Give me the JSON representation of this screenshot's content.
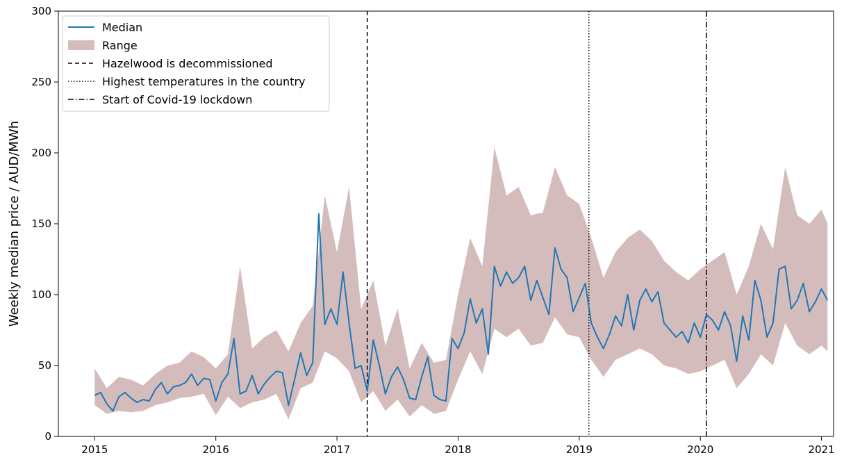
{
  "chart_data": {
    "type": "line",
    "title": "",
    "xlabel": "",
    "ylabel": "Weekly median price / AUD/MWh",
    "xlim": [
      2014.7,
      2021.1
    ],
    "ylim": [
      0,
      300
    ],
    "grid": false,
    "legend_placement": "top-left",
    "x_ticks": [
      2015,
      2016,
      2017,
      2018,
      2019,
      2020,
      2021
    ],
    "x_tick_labels": [
      "2015",
      "2016",
      "2017",
      "2018",
      "2019",
      "2020",
      "2021"
    ],
    "y_ticks": [
      0,
      50,
      100,
      150,
      200,
      250,
      300
    ],
    "y_tick_labels": [
      "0",
      "50",
      "100",
      "150",
      "200",
      "250",
      "300"
    ],
    "colors": {
      "median": "#1f77b4",
      "range": "#d5bcbc",
      "event_line": "#000000"
    },
    "series": [
      {
        "name": "Median",
        "kind": "line",
        "points": [
          [
            2015.0,
            29
          ],
          [
            2015.05,
            31
          ],
          [
            2015.1,
            23
          ],
          [
            2015.15,
            18
          ],
          [
            2015.2,
            28
          ],
          [
            2015.25,
            31
          ],
          [
            2015.3,
            27
          ],
          [
            2015.35,
            24
          ],
          [
            2015.4,
            26
          ],
          [
            2015.45,
            25
          ],
          [
            2015.5,
            33
          ],
          [
            2015.55,
            38
          ],
          [
            2015.6,
            30
          ],
          [
            2015.65,
            35
          ],
          [
            2015.7,
            36
          ],
          [
            2015.75,
            38
          ],
          [
            2015.8,
            44
          ],
          [
            2015.85,
            36
          ],
          [
            2015.9,
            41
          ],
          [
            2015.95,
            40
          ],
          [
            2016.0,
            25
          ],
          [
            2016.05,
            38
          ],
          [
            2016.1,
            44
          ],
          [
            2016.15,
            69
          ],
          [
            2016.2,
            30
          ],
          [
            2016.25,
            32
          ],
          [
            2016.3,
            43
          ],
          [
            2016.35,
            30
          ],
          [
            2016.4,
            37
          ],
          [
            2016.45,
            42
          ],
          [
            2016.5,
            46
          ],
          [
            2016.55,
            45
          ],
          [
            2016.6,
            22
          ],
          [
            2016.65,
            40
          ],
          [
            2016.7,
            59
          ],
          [
            2016.75,
            43
          ],
          [
            2016.8,
            52
          ],
          [
            2016.85,
            157
          ],
          [
            2016.9,
            79
          ],
          [
            2016.95,
            90
          ],
          [
            2017.0,
            79
          ],
          [
            2017.05,
            116
          ],
          [
            2017.1,
            80
          ],
          [
            2017.15,
            48
          ],
          [
            2017.2,
            50
          ],
          [
            2017.25,
            32
          ],
          [
            2017.3,
            68
          ],
          [
            2017.35,
            50
          ],
          [
            2017.4,
            30
          ],
          [
            2017.45,
            42
          ],
          [
            2017.5,
            49
          ],
          [
            2017.55,
            40
          ],
          [
            2017.6,
            27
          ],
          [
            2017.65,
            26
          ],
          [
            2017.7,
            42
          ],
          [
            2017.75,
            56
          ],
          [
            2017.8,
            29
          ],
          [
            2017.85,
            26
          ],
          [
            2017.9,
            25
          ],
          [
            2017.95,
            69
          ],
          [
            2018.0,
            62
          ],
          [
            2018.05,
            73
          ],
          [
            2018.1,
            97
          ],
          [
            2018.15,
            80
          ],
          [
            2018.2,
            90
          ],
          [
            2018.25,
            58
          ],
          [
            2018.3,
            120
          ],
          [
            2018.35,
            106
          ],
          [
            2018.4,
            116
          ],
          [
            2018.45,
            108
          ],
          [
            2018.5,
            112
          ],
          [
            2018.55,
            120
          ],
          [
            2018.6,
            96
          ],
          [
            2018.65,
            110
          ],
          [
            2018.7,
            98
          ],
          [
            2018.75,
            86
          ],
          [
            2018.8,
            133
          ],
          [
            2018.85,
            118
          ],
          [
            2018.9,
            112
          ],
          [
            2018.95,
            88
          ],
          [
            2019.0,
            98
          ],
          [
            2019.05,
            108
          ],
          [
            2019.1,
            80
          ],
          [
            2019.15,
            70
          ],
          [
            2019.2,
            62
          ],
          [
            2019.25,
            72
          ],
          [
            2019.3,
            85
          ],
          [
            2019.35,
            78
          ],
          [
            2019.4,
            100
          ],
          [
            2019.45,
            75
          ],
          [
            2019.5,
            96
          ],
          [
            2019.55,
            104
          ],
          [
            2019.6,
            95
          ],
          [
            2019.65,
            102
          ],
          [
            2019.7,
            80
          ],
          [
            2019.75,
            75
          ],
          [
            2019.8,
            70
          ],
          [
            2019.85,
            74
          ],
          [
            2019.9,
            66
          ],
          [
            2019.95,
            80
          ],
          [
            2020.0,
            70
          ],
          [
            2020.05,
            86
          ],
          [
            2020.1,
            82
          ],
          [
            2020.15,
            75
          ],
          [
            2020.2,
            88
          ],
          [
            2020.25,
            78
          ],
          [
            2020.3,
            53
          ],
          [
            2020.35,
            85
          ],
          [
            2020.4,
            68
          ],
          [
            2020.45,
            110
          ],
          [
            2020.5,
            96
          ],
          [
            2020.55,
            70
          ],
          [
            2020.6,
            80
          ],
          [
            2020.65,
            118
          ],
          [
            2020.7,
            120
          ],
          [
            2020.75,
            90
          ],
          [
            2020.8,
            96
          ],
          [
            2020.85,
            108
          ],
          [
            2020.9,
            88
          ],
          [
            2020.95,
            95
          ],
          [
            2021.0,
            104
          ],
          [
            2021.05,
            96
          ]
        ]
      },
      {
        "name": "Range",
        "kind": "band",
        "lower": [
          [
            2015.0,
            22
          ],
          [
            2015.1,
            16
          ],
          [
            2015.2,
            18
          ],
          [
            2015.3,
            17
          ],
          [
            2015.4,
            18
          ],
          [
            2015.5,
            22
          ],
          [
            2015.6,
            24
          ],
          [
            2015.7,
            27
          ],
          [
            2015.8,
            28
          ],
          [
            2015.9,
            30
          ],
          [
            2016.0,
            15
          ],
          [
            2016.1,
            28
          ],
          [
            2016.2,
            20
          ],
          [
            2016.3,
            24
          ],
          [
            2016.4,
            26
          ],
          [
            2016.5,
            30
          ],
          [
            2016.6,
            12
          ],
          [
            2016.7,
            34
          ],
          [
            2016.8,
            38
          ],
          [
            2016.9,
            60
          ],
          [
            2017.0,
            55
          ],
          [
            2017.1,
            46
          ],
          [
            2017.2,
            24
          ],
          [
            2017.3,
            32
          ],
          [
            2017.4,
            18
          ],
          [
            2017.5,
            26
          ],
          [
            2017.6,
            14
          ],
          [
            2017.7,
            22
          ],
          [
            2017.8,
            16
          ],
          [
            2017.9,
            18
          ],
          [
            2018.0,
            40
          ],
          [
            2018.1,
            60
          ],
          [
            2018.2,
            44
          ],
          [
            2018.3,
            76
          ],
          [
            2018.4,
            70
          ],
          [
            2018.5,
            76
          ],
          [
            2018.6,
            64
          ],
          [
            2018.7,
            66
          ],
          [
            2018.8,
            84
          ],
          [
            2018.9,
            72
          ],
          [
            2019.0,
            70
          ],
          [
            2019.1,
            54
          ],
          [
            2019.2,
            42
          ],
          [
            2019.3,
            54
          ],
          [
            2019.4,
            58
          ],
          [
            2019.5,
            62
          ],
          [
            2019.6,
            58
          ],
          [
            2019.7,
            50
          ],
          [
            2019.8,
            48
          ],
          [
            2019.9,
            44
          ],
          [
            2020.0,
            46
          ],
          [
            2020.1,
            50
          ],
          [
            2020.2,
            54
          ],
          [
            2020.3,
            34
          ],
          [
            2020.4,
            44
          ],
          [
            2020.5,
            58
          ],
          [
            2020.6,
            50
          ],
          [
            2020.7,
            80
          ],
          [
            2020.8,
            64
          ],
          [
            2020.9,
            58
          ],
          [
            2021.0,
            64
          ],
          [
            2021.05,
            60
          ]
        ],
        "upper": [
          [
            2015.0,
            48
          ],
          [
            2015.1,
            34
          ],
          [
            2015.2,
            42
          ],
          [
            2015.3,
            40
          ],
          [
            2015.4,
            36
          ],
          [
            2015.5,
            44
          ],
          [
            2015.6,
            50
          ],
          [
            2015.7,
            52
          ],
          [
            2015.8,
            60
          ],
          [
            2015.9,
            56
          ],
          [
            2016.0,
            48
          ],
          [
            2016.1,
            58
          ],
          [
            2016.2,
            120
          ],
          [
            2016.3,
            62
          ],
          [
            2016.4,
            70
          ],
          [
            2016.5,
            75
          ],
          [
            2016.6,
            60
          ],
          [
            2016.7,
            80
          ],
          [
            2016.8,
            92
          ],
          [
            2016.9,
            170
          ],
          [
            2017.0,
            130
          ],
          [
            2017.1,
            176
          ],
          [
            2017.2,
            90
          ],
          [
            2017.3,
            110
          ],
          [
            2017.4,
            64
          ],
          [
            2017.5,
            90
          ],
          [
            2017.6,
            48
          ],
          [
            2017.7,
            66
          ],
          [
            2017.8,
            52
          ],
          [
            2017.9,
            54
          ],
          [
            2018.0,
            100
          ],
          [
            2018.1,
            140
          ],
          [
            2018.2,
            120
          ],
          [
            2018.3,
            204
          ],
          [
            2018.4,
            170
          ],
          [
            2018.5,
            176
          ],
          [
            2018.6,
            156
          ],
          [
            2018.7,
            158
          ],
          [
            2018.8,
            190
          ],
          [
            2018.9,
            170
          ],
          [
            2019.0,
            164
          ],
          [
            2019.1,
            140
          ],
          [
            2019.2,
            112
          ],
          [
            2019.3,
            130
          ],
          [
            2019.4,
            140
          ],
          [
            2019.5,
            146
          ],
          [
            2019.6,
            138
          ],
          [
            2019.7,
            124
          ],
          [
            2019.8,
            116
          ],
          [
            2019.9,
            110
          ],
          [
            2020.0,
            118
          ],
          [
            2020.1,
            124
          ],
          [
            2020.2,
            130
          ],
          [
            2020.3,
            100
          ],
          [
            2020.4,
            120
          ],
          [
            2020.5,
            150
          ],
          [
            2020.6,
            132
          ],
          [
            2020.7,
            190
          ],
          [
            2020.8,
            156
          ],
          [
            2020.9,
            150
          ],
          [
            2021.0,
            160
          ],
          [
            2021.05,
            150
          ]
        ]
      }
    ],
    "event_lines": [
      {
        "x": 2017.25,
        "label": "Hazelwood is decommissioned",
        "style": "dashed"
      },
      {
        "x": 2019.08,
        "label": "Highest temperatures in the country",
        "style": "dotted"
      },
      {
        "x": 2020.05,
        "label": "Start of Covid-19 lockdown",
        "style": "dashdot"
      }
    ],
    "legend": [
      {
        "label": "Median",
        "kind": "line"
      },
      {
        "label": "Range",
        "kind": "patch"
      },
      {
        "label": "Hazelwood is decommissioned",
        "kind": "dashed"
      },
      {
        "label": "Highest temperatures in the country",
        "kind": "dotted"
      },
      {
        "label": "Start of Covid-19 lockdown",
        "kind": "dashdot"
      }
    ]
  }
}
